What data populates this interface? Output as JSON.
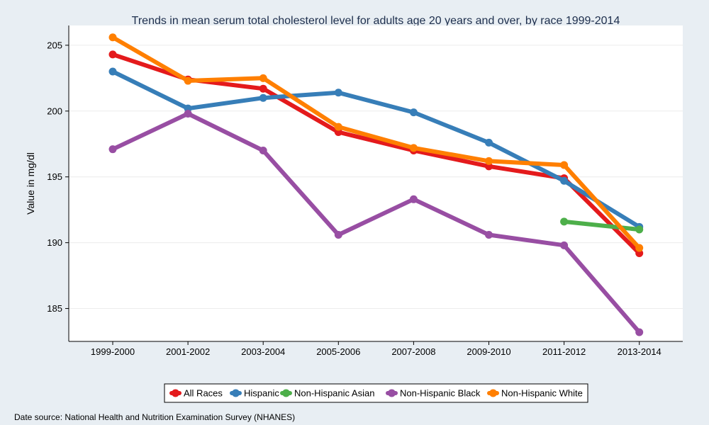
{
  "chart_data": {
    "type": "line",
    "title": "Trends in mean serum total cholesterol level for adults age 20 years and over, by race 1999-2014",
    "xlabel": "",
    "ylabel": "Value in mg/dl",
    "categories": [
      "1999-2000",
      "2001-2002",
      "2003-2004",
      "2005-2006",
      "2007-2008",
      "2009-2010",
      "2011-2012",
      "2013-2014"
    ],
    "yticks": [
      185,
      190,
      195,
      200,
      205
    ],
    "ylim": [
      182.5,
      206.5
    ],
    "grid": true,
    "legend_position": "bottom",
    "series": [
      {
        "name": "All Races",
        "color": "#e41a1c",
        "values": [
          204.3,
          202.4,
          201.7,
          198.4,
          197.0,
          195.8,
          194.9,
          189.2
        ]
      },
      {
        "name": "Hispanic",
        "color": "#377eb8",
        "values": [
          203.0,
          200.2,
          201.0,
          201.4,
          199.9,
          197.6,
          194.7,
          191.2
        ]
      },
      {
        "name": "Non-Hispanic Asian",
        "color": "#4daf4a",
        "values": [
          null,
          null,
          null,
          null,
          null,
          null,
          191.6,
          191.0
        ]
      },
      {
        "name": "Non-Hispanic Black",
        "color": "#984ea3",
        "values": [
          197.1,
          199.8,
          197.0,
          190.6,
          193.3,
          190.6,
          189.8,
          183.2
        ]
      },
      {
        "name": "Non-Hispanic White",
        "color": "#ff7f00",
        "values": [
          205.6,
          202.3,
          202.5,
          198.8,
          197.2,
          196.2,
          195.9,
          189.6
        ]
      }
    ]
  },
  "footer": {
    "source": "Date source: National Health and Nutrition Examination Survey (NHANES)"
  }
}
